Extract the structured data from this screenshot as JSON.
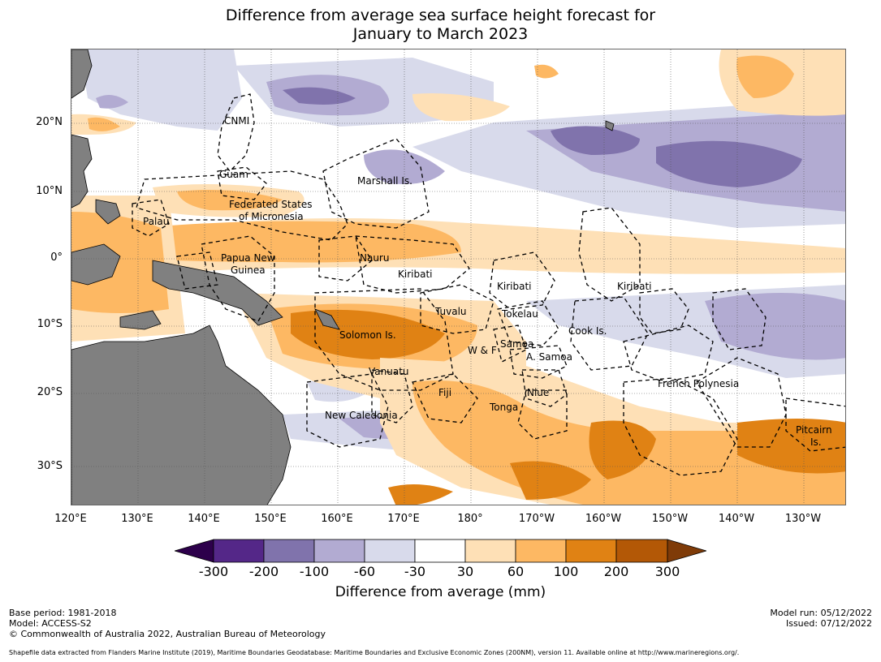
{
  "title_line1": "Difference from average sea surface height forecast for",
  "title_line2": "January to March 2023",
  "latitudes": [
    "20°N",
    "10°N",
    "0°",
    "10°S",
    "20°S",
    "30°S"
  ],
  "longitudes": [
    "120°E",
    "130°E",
    "140°E",
    "150°E",
    "160°E",
    "170°E",
    "180°",
    "170°W",
    "160°W",
    "150°W",
    "140°W",
    "130°W"
  ],
  "regions": [
    "CNMI",
    "Guam",
    "Marshall Is.",
    "Federated States",
    "of Micronesia",
    "Palau",
    "Papua New",
    "Guinea",
    "Nauru",
    "Kiribati",
    "Kiribati",
    "Kiribati",
    "Tuvalu",
    "Tokelau",
    "Cook Is.",
    "Solomon Is.",
    "W & F",
    "Samoa",
    "A. Samoa",
    "Vanuatu",
    "Fiji",
    "Niue",
    "Tonga",
    "New Caledonia",
    "French Polynesia",
    "Pitcairn",
    "Is."
  ],
  "colorbar": {
    "ticks": [
      "-300",
      "-200",
      "-100",
      "-60",
      "-30",
      "30",
      "60",
      "100",
      "200",
      "300"
    ],
    "colors": [
      "#2d004b",
      "#542788",
      "#8073ac",
      "#b2abd2",
      "#d8daeb",
      "#ffffff",
      "#fee0b6",
      "#fdb863",
      "#e08214",
      "#b35806",
      "#7f3b08"
    ],
    "title": "Difference from average (mm)"
  },
  "footer": {
    "base_period": "Base period: 1981-2018",
    "model": "Model: ACCESS-S2",
    "copyright": "© Commonwealth of Australia 2022, Australian Bureau of Meteorology",
    "model_run": "Model run: 05/12/2022",
    "issued": "Issued: 07/12/2022",
    "shapefile": "Shapefile data extracted from Flanders Marine Institute (2019), Maritime Boundaries Geodatabase: Maritime Boundaries and Exclusive Economic Zones (200NM), version 11. Available online at http://www.marineregions.org/."
  }
}
